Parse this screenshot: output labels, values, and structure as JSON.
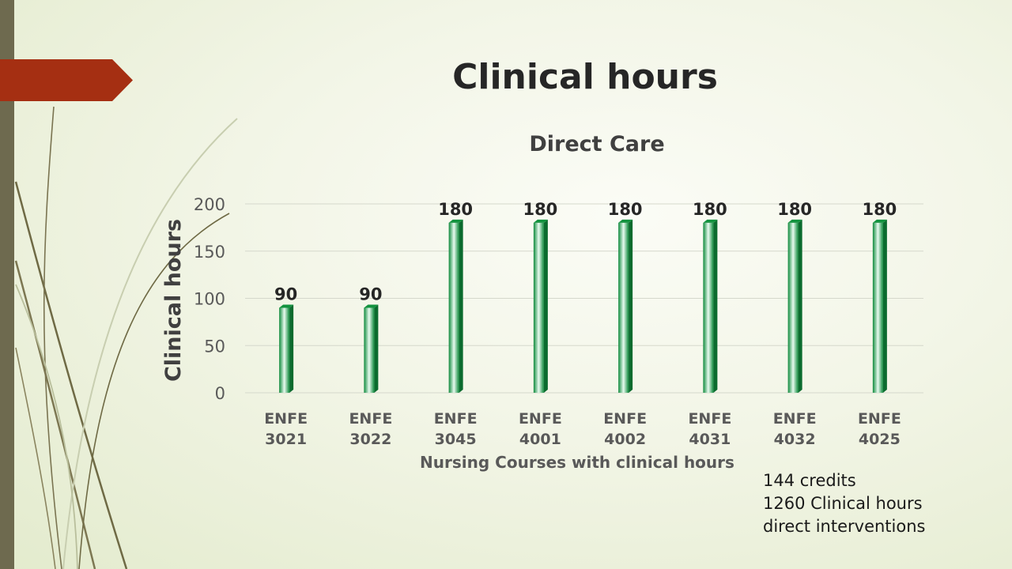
{
  "slide": {
    "title": "Clinical hours",
    "notes": [
      "144 credits",
      "1260 Clinical hours",
      "direct interventions"
    ]
  },
  "theme": {
    "accent_flag": "#a52f12",
    "side_bar": "#6e6a4f",
    "bar_color": "#16a34a"
  },
  "chart_data": {
    "type": "bar",
    "title": "Direct Care",
    "xlabel": "Nursing Courses with clinical hours",
    "ylabel": "Clinical hours",
    "categories": [
      [
        "ENFE",
        "3021"
      ],
      [
        "ENFE",
        "3022"
      ],
      [
        "ENFE",
        "3045"
      ],
      [
        "ENFE",
        "4001"
      ],
      [
        "ENFE",
        "4002"
      ],
      [
        "ENFE",
        "4031"
      ],
      [
        "ENFE",
        "4032"
      ],
      [
        "ENFE",
        "4025"
      ]
    ],
    "values": [
      90,
      90,
      180,
      180,
      180,
      180,
      180,
      180
    ],
    "ylim": [
      0,
      200
    ],
    "yticks": [
      0,
      50,
      100,
      150,
      200
    ],
    "grid": true,
    "data_labels": true
  }
}
